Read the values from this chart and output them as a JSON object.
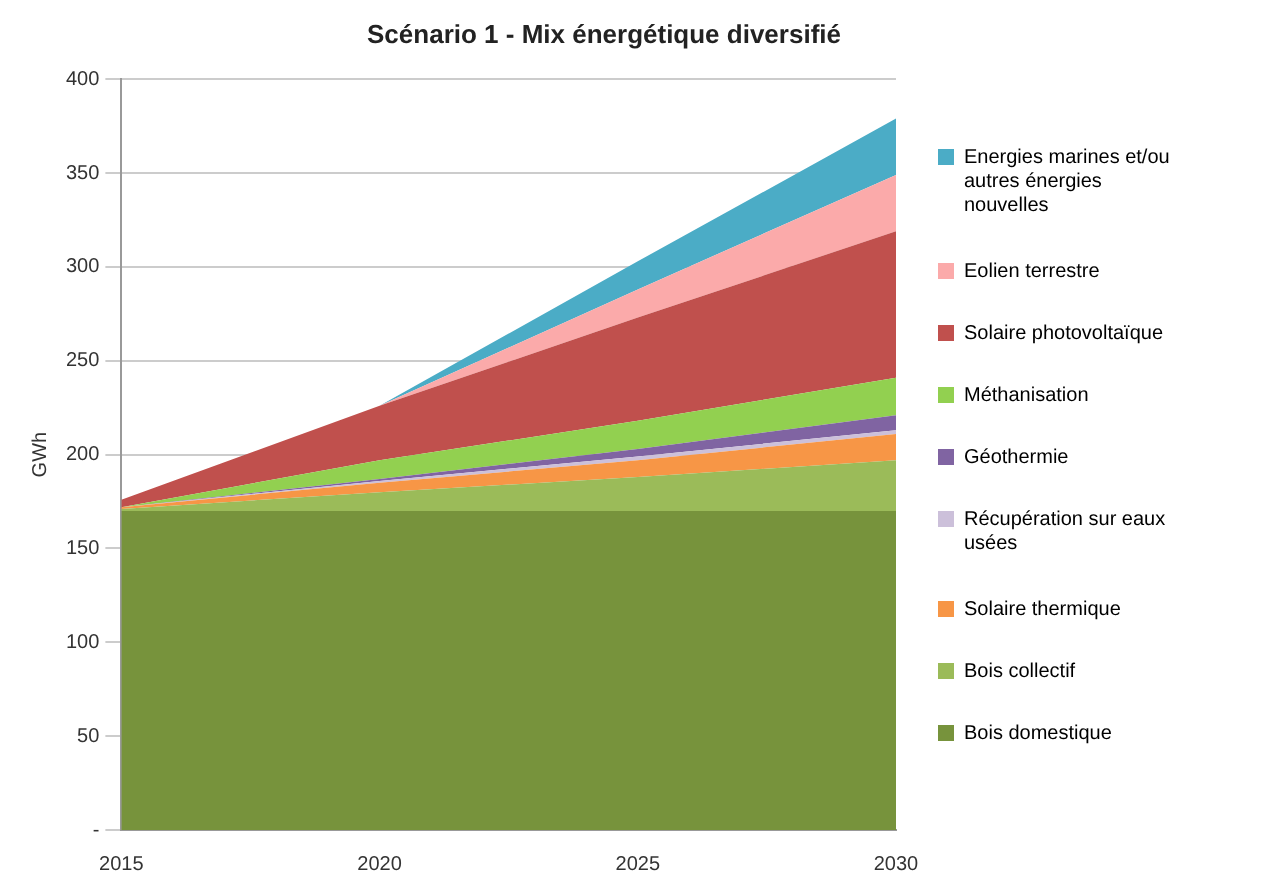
{
  "chart_data": {
    "type": "area",
    "title": "Scénario 1 - Mix énergétique diversifié",
    "ylabel": "GWh",
    "categories": [
      "2015",
      "2020",
      "2025",
      "2030"
    ],
    "stacked": true,
    "series": [
      {
        "name": "Bois domestique",
        "color": "#77933c",
        "values": [
          170,
          170,
          170,
          170
        ]
      },
      {
        "name": "Bois collectif",
        "color": "#9bbb59",
        "values": [
          1,
          10,
          18,
          27
        ]
      },
      {
        "name": "Solaire thermique",
        "color": "#f79646",
        "values": [
          1,
          5,
          9,
          14
        ]
      },
      {
        "name": "Récupération sur eaux usées",
        "color": "#ccc0da",
        "values": [
          0,
          1,
          2,
          2
        ]
      },
      {
        "name": "Géothermie",
        "color": "#8064a2",
        "values": [
          0,
          1,
          4,
          8
        ]
      },
      {
        "name": "Méthanisation",
        "color": "#92d050",
        "values": [
          0,
          10,
          15,
          20
        ]
      },
      {
        "name": "Solaire photovoltaïque",
        "color": "#c0504d",
        "values": [
          4,
          29,
          55,
          78
        ]
      },
      {
        "name": "Eolien terrestre",
        "color": "#fbaaaa",
        "values": [
          0,
          0,
          15,
          30
        ]
      },
      {
        "name": "Energies marines et/ou autres énergies nouvelles",
        "color": "#4bacc6",
        "values": [
          0,
          0,
          15,
          30
        ]
      }
    ],
    "ylim": [
      0,
      400
    ],
    "yticks": [
      {
        "value": 0,
        "label": "-"
      },
      50,
      100,
      150,
      200,
      250,
      300,
      350,
      400
    ],
    "grid": "y",
    "legend": "right",
    "marker": "none"
  }
}
